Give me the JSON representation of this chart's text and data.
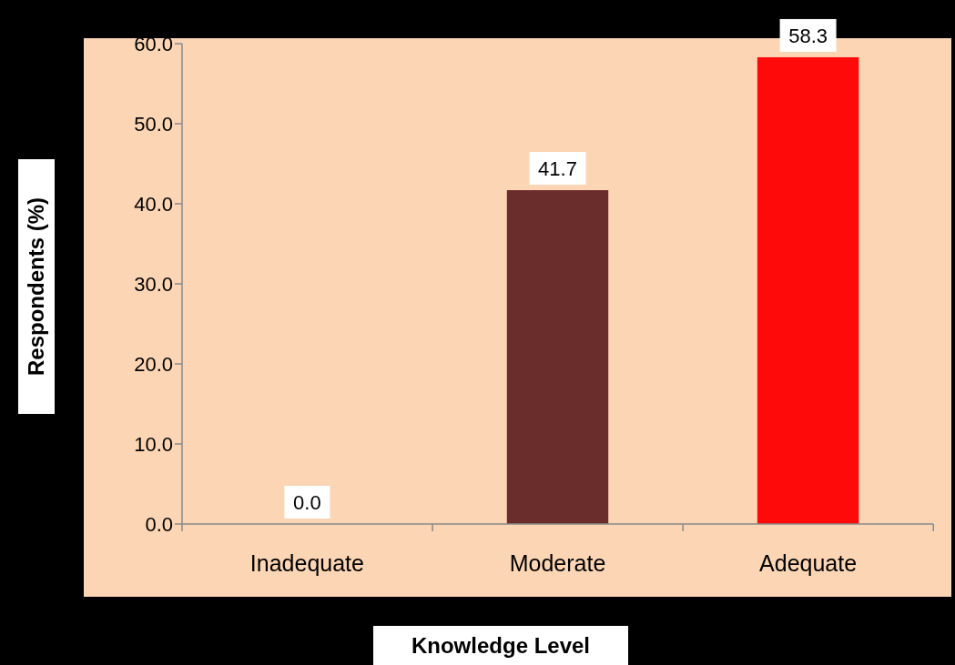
{
  "chart_data": {
    "type": "bar",
    "xlabel": "Knowledge Level",
    "ylabel": "Respondents (%)",
    "categories": [
      "Inadequate",
      "Moderate",
      "Adequate"
    ],
    "values": [
      0.0,
      41.7,
      58.3
    ],
    "colors": [
      "#6b2c2c",
      "#6b2c2c",
      "#ff0a0a"
    ],
    "value_labels": [
      "0.0",
      "41.7",
      "58.3"
    ],
    "ylim": [
      0,
      60
    ],
    "yticks": [
      {
        "value": 0,
        "label": "0.0"
      },
      {
        "value": 10,
        "label": "10.0"
      },
      {
        "value": 20,
        "label": "20.0"
      },
      {
        "value": 30,
        "label": "30.0"
      },
      {
        "value": 40,
        "label": "40.0"
      },
      {
        "value": 50,
        "label": "50.0"
      },
      {
        "value": 60,
        "label": "60.0"
      }
    ],
    "grid": false
  }
}
